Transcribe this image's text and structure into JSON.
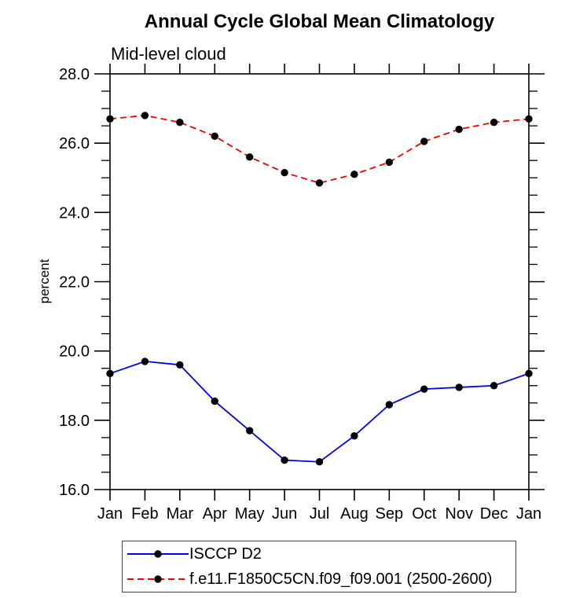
{
  "chart_data": {
    "type": "line",
    "title": "Annual Cycle Global Mean Climatology",
    "subtitle": "Mid-level cloud",
    "ylabel": "percent",
    "ylim": [
      16.0,
      28.0
    ],
    "y_tick_labels": [
      "28.0",
      "26.0",
      "24.0",
      "22.0",
      "20.0",
      "18.0",
      "16.0"
    ],
    "y_minor_step": 0.5,
    "grid": "off",
    "legend_position": "bottom-left-box",
    "categories": [
      "Jan",
      "Feb",
      "Mar",
      "Apr",
      "May",
      "Jun",
      "Jul",
      "Aug",
      "Sep",
      "Oct",
      "Nov",
      "Dec",
      "Jan"
    ],
    "series": [
      {
        "name": "ISCCP D2",
        "line_style": "solid",
        "line_color": "#0000ee",
        "marker": "filled-circle",
        "marker_color": "#000000",
        "values": [
          19.35,
          19.7,
          19.6,
          18.55,
          17.7,
          16.85,
          16.8,
          17.55,
          18.45,
          18.9,
          18.95,
          19.0,
          19.35
        ]
      },
      {
        "name": "f.e11.F1850C5CN.f09_f09.001 (2500-2600)",
        "line_style": "dashed",
        "line_color": "#ee0000",
        "marker": "filled-circle",
        "marker_color": "#000000",
        "values": [
          26.7,
          26.8,
          26.6,
          26.2,
          25.6,
          25.15,
          24.85,
          25.1,
          25.45,
          26.05,
          26.4,
          26.6,
          26.7
        ]
      }
    ],
    "axis_color": "#000000",
    "text_color": "#000000"
  },
  "legend": {
    "items": [
      {
        "label": "ISCCP D2"
      },
      {
        "label": "f.e11.F1850C5CN.f09_f09.001 (2500-2600)"
      }
    ]
  }
}
